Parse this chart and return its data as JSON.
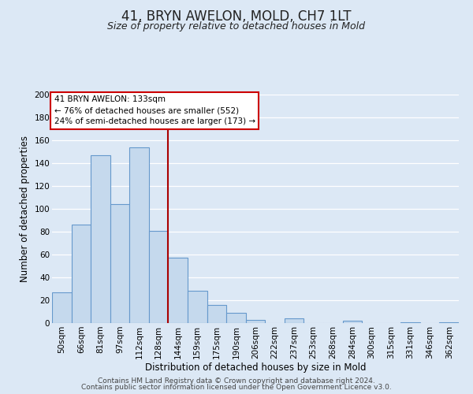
{
  "title": "41, BRYN AWELON, MOLD, CH7 1LT",
  "subtitle": "Size of property relative to detached houses in Mold",
  "xlabel": "Distribution of detached houses by size in Mold",
  "ylabel": "Number of detached properties",
  "bar_color": "#c5d9ed",
  "bar_edge_color": "#6699cc",
  "bar_values": [
    27,
    86,
    147,
    104,
    154,
    81,
    57,
    28,
    16,
    9,
    3,
    0,
    4,
    0,
    0,
    2,
    0,
    0,
    1,
    0,
    1
  ],
  "bin_labels": [
    "50sqm",
    "66sqm",
    "81sqm",
    "97sqm",
    "112sqm",
    "128sqm",
    "144sqm",
    "159sqm",
    "175sqm",
    "190sqm",
    "206sqm",
    "222sqm",
    "237sqm",
    "253sqm",
    "268sqm",
    "284sqm",
    "300sqm",
    "315sqm",
    "331sqm",
    "346sqm",
    "362sqm"
  ],
  "ylim": [
    0,
    200
  ],
  "yticks": [
    0,
    20,
    40,
    60,
    80,
    100,
    120,
    140,
    160,
    180,
    200
  ],
  "property_line_x": 5.5,
  "property_line_color": "#aa0000",
  "annotation_title": "41 BRYN AWELON: 133sqm",
  "annotation_line1": "← 76% of detached houses are smaller (552)",
  "annotation_line2": "24% of semi-detached houses are larger (173) →",
  "annotation_box_facecolor": "#ffffff",
  "annotation_box_edgecolor": "#cc0000",
  "footer_line1": "Contains HM Land Registry data © Crown copyright and database right 2024.",
  "footer_line2": "Contains public sector information licensed under the Open Government Licence v3.0.",
  "background_color": "#dce8f5",
  "plot_background_color": "#dce8f5",
  "grid_color": "#ffffff",
  "title_fontsize": 12,
  "subtitle_fontsize": 9,
  "axis_label_fontsize": 8.5,
  "tick_fontsize": 7.5,
  "annotation_fontsize": 7.5,
  "footer_fontsize": 6.5
}
